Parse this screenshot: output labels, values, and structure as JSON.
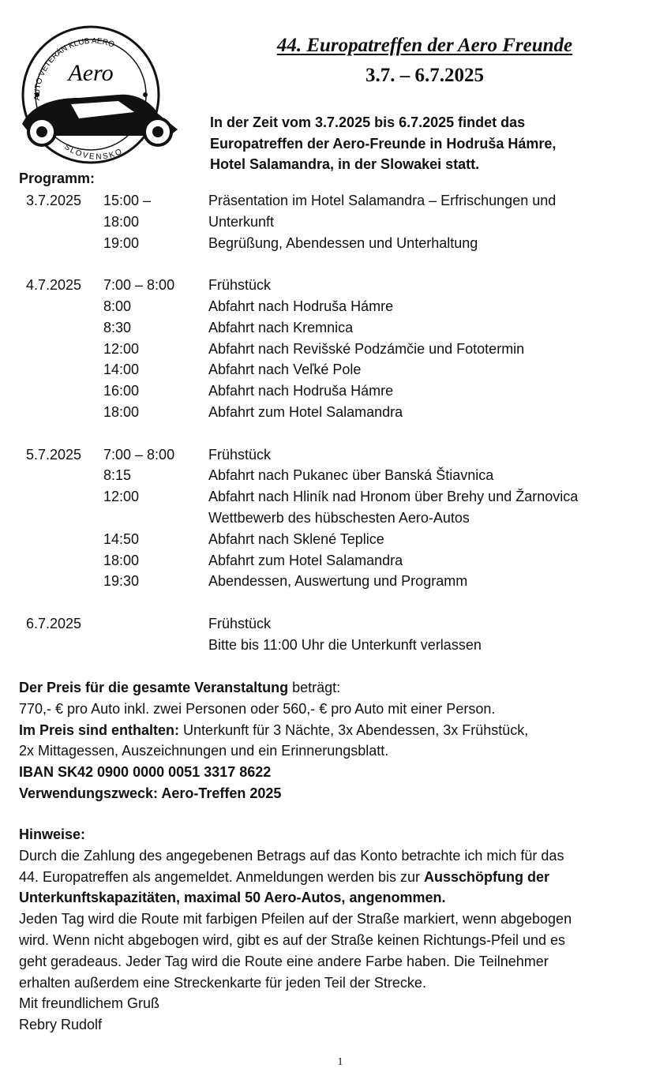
{
  "logo": {
    "ring_top": "AUTO VETERÁN KLUB AERO",
    "script": "Aero",
    "ring_bottom": "SLOVENSKO"
  },
  "header": {
    "title": "44. Europatreffen der Aero Freunde",
    "dates": "3.7. – 6.7.2025"
  },
  "intro": [
    "In der Zeit vom 3.7.2025 bis 6.7.2025 findet das",
    "Europatreffen der Aero-Freunde in Hodruša Hámre,",
    "Hotel Salamandra, in der Slowakei statt."
  ],
  "programm_label": "Programm:",
  "schedule": [
    {
      "date": "3.7.2025",
      "rows": [
        {
          "time": "15:00 –",
          "event": "Präsentation im Hotel Salamandra – Erfrischungen und"
        },
        {
          "time": "18:00",
          "event": "Unterkunft"
        },
        {
          "time": "19:00",
          "event": "Begrüßung, Abendessen und Unterhaltung"
        }
      ]
    },
    {
      "date": "4.7.2025",
      "rows": [
        {
          "time": "7:00 – 8:00",
          "event": "Frühstück"
        },
        {
          "time": "8:00",
          "event": "Abfahrt nach Hodruša Hámre"
        },
        {
          "time": "8:30",
          "event": "Abfahrt nach Kremnica"
        },
        {
          "time": "12:00",
          "event": "Abfahrt nach Revišské Podzámčie und Fototermin"
        },
        {
          "time": "14:00",
          "event": "Abfahrt nach Veľké Pole"
        },
        {
          "time": "16:00",
          "event": "Abfahrt nach Hodruša Hámre"
        },
        {
          "time": "18:00",
          "event": "Abfahrt zum Hotel Salamandra"
        }
      ]
    },
    {
      "date": "5.7.2025",
      "rows": [
        {
          "time": "7:00 – 8:00",
          "event": "Frühstück"
        },
        {
          "time": "8:15",
          "event": "Abfahrt nach Pukanec über Banská Štiavnica"
        },
        {
          "time": "12:00",
          "event": "Abfahrt nach Hliník nad Hronom über Brehy und Žarnovica"
        },
        {
          "time": "",
          "event": "Wettbewerb des hübschesten Aero-Autos"
        },
        {
          "time": "14:50",
          "event": "Abfahrt nach Sklené Teplice"
        },
        {
          "time": "18:00",
          "event": "Abfahrt zum Hotel Salamandra"
        },
        {
          "time": "19:30",
          "event": "Abendessen, Auswertung und Programm"
        }
      ]
    },
    {
      "date": "6.7.2025",
      "rows": [
        {
          "time": "",
          "event": "Frühstück"
        },
        {
          "time": "",
          "event": "Bitte bis 11:00 Uhr die Unterkunft verlassen"
        }
      ]
    }
  ],
  "price": {
    "l1_bold": "Der Preis für die gesamte Veranstaltung",
    "l1_rest": " beträgt:",
    "l2": "770,- € pro Auto inkl. zwei Personen oder 560,- € pro Auto mit einer Person.",
    "l3_bold": "Im Preis sind enthalten:",
    "l3_rest": " Unterkunft für 3 Nächte, 3x Abendessen, 3x Frühstück,",
    "l4": "2x Mittagessen, Auszeichnungen und ein Erinnerungsblatt.",
    "iban": "IBAN SK42 0900 0000 0051 3317 8622",
    "purpose": "Verwendungszweck: Aero-Treffen 2025"
  },
  "notes": {
    "heading": "Hinweise:",
    "p1a": "Durch die Zahlung des angegebenen Betrags auf das Konto betrachte ich mich für das",
    "p1b": "44. Europatreffen als angemeldet. Anmeldungen werden bis zur ",
    "p1b_bold": "Ausschöpfung der",
    "p1c_bold": "Unterkunftskapazitäten, maximal 50 Aero-Autos, angenommen.",
    "p2": [
      "Jeden Tag wird die Route mit farbigen Pfeilen auf der Straße markiert, wenn abgebogen",
      "wird. Wenn nicht abgebogen wird, gibt es auf der Straße keinen Richtungs-Pfeil und es",
      "geht geradeaus. Jeder Tag wird die Route eine andere Farbe haben. Die Teilnehmer",
      "erhalten außerdem eine Streckenkarte für jeden Teil der Strecke."
    ],
    "greeting": "Mit freundlichem Gruß",
    "signature": "Rebry Rudolf"
  },
  "page_number": "1"
}
